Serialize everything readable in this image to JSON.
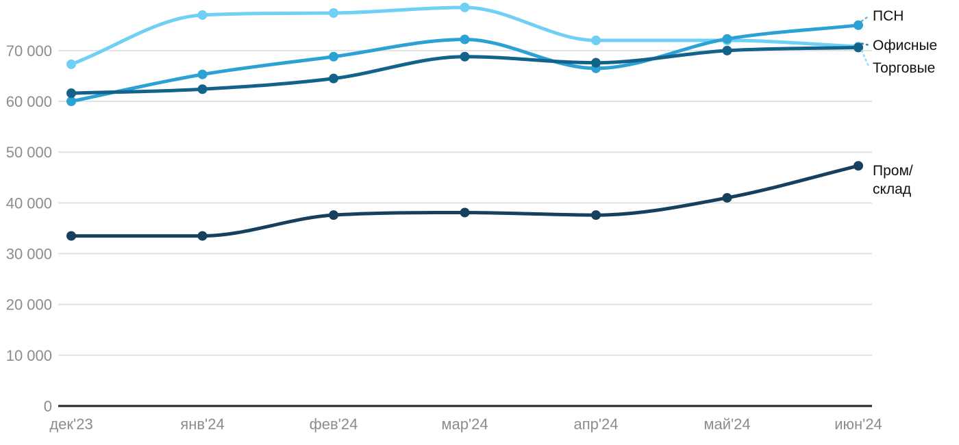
{
  "chart_data": {
    "type": "line",
    "title": "",
    "xlabel": "",
    "ylabel": "",
    "x_categories": [
      "дек'23",
      "янв'24",
      "фев'24",
      "мар'24",
      "апр'24",
      "май'24",
      "июн'24"
    ],
    "y_ticks": [
      0,
      10000,
      20000,
      30000,
      40000,
      50000,
      60000,
      70000
    ],
    "y_tick_labels": [
      "0",
      "10 000",
      "20 000",
      "30 000",
      "40 000",
      "50 000",
      "60 000",
      "70 000"
    ],
    "ylim": [
      0,
      80000
    ],
    "grid": "horizontal",
    "legend_position": "right-edge-direct-labels",
    "series": [
      {
        "name": "Торговые",
        "label_lines": [
          "Торговые"
        ],
        "color": "#6FCFF5",
        "values": [
          67300,
          77000,
          77400,
          78500,
          72000,
          72000,
          70800
        ]
      },
      {
        "name": "ПСН",
        "label_lines": [
          "ПСН"
        ],
        "color": "#2BA1D4",
        "values": [
          60000,
          65300,
          68800,
          72200,
          66500,
          72300,
          75000
        ]
      },
      {
        "name": "Офисные",
        "label_lines": [
          "Офисные"
        ],
        "color": "#13628A",
        "values": [
          61600,
          62400,
          64500,
          68800,
          67600,
          70000,
          70600
        ]
      },
      {
        "name": "Пром/склад",
        "label_lines": [
          "Пром/",
          "склад"
        ],
        "color": "#16405E",
        "values": [
          33500,
          33500,
          37600,
          38100,
          37600,
          41000,
          47300
        ]
      }
    ],
    "layout": {
      "series_label_y": {
        "ПСН": 30,
        "Офисные": 73,
        "Торговые": 106,
        "Пром/склад": 256
      },
      "series_has_connector": {
        "ПСН": true,
        "Офисные": true,
        "Торговые": true,
        "Пром/склад": false
      }
    },
    "colors": {
      "axis_line": "#222222",
      "grid_line": "#e2e2e2",
      "tick_label": "#8c8c8c",
      "series_label": "#111111"
    }
  }
}
